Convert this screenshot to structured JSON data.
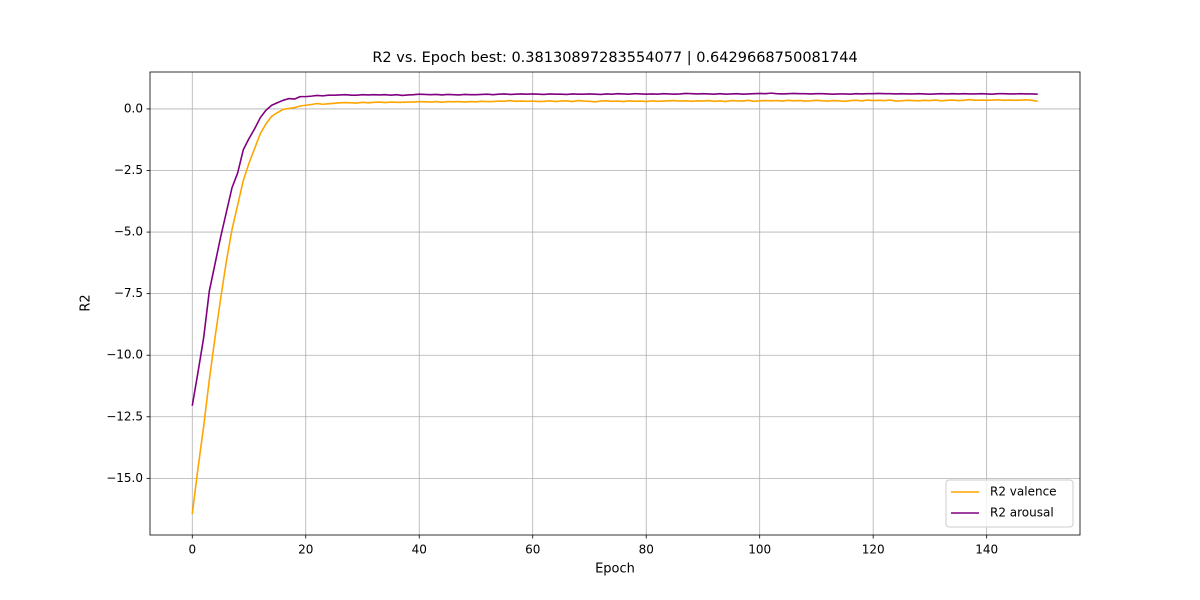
{
  "chart_data": {
    "type": "line",
    "title": "R2 vs. Epoch best: 0.38130897283554077 | 0.6429668750081744",
    "xlabel": "Epoch",
    "ylabel": "R2",
    "x": [
      0,
      1,
      2,
      3,
      4,
      5,
      6,
      7,
      8,
      9,
      10,
      11,
      12,
      13,
      14,
      15,
      16,
      17,
      18,
      19,
      20,
      21,
      22,
      23,
      24,
      25,
      26,
      27,
      28,
      29,
      30,
      31,
      32,
      33,
      34,
      35,
      36,
      37,
      38,
      39,
      40,
      41,
      42,
      43,
      44,
      45,
      46,
      47,
      48,
      49,
      50,
      51,
      52,
      53,
      54,
      55,
      56,
      57,
      58,
      59,
      60,
      61,
      62,
      63,
      64,
      65,
      66,
      67,
      68,
      69,
      70,
      71,
      72,
      73,
      74,
      75,
      76,
      77,
      78,
      79,
      80,
      81,
      82,
      83,
      84,
      85,
      86,
      87,
      88,
      89,
      90,
      91,
      92,
      93,
      94,
      95,
      96,
      97,
      98,
      99,
      100,
      101,
      102,
      103,
      104,
      105,
      106,
      107,
      108,
      109,
      110,
      111,
      112,
      113,
      114,
      115,
      116,
      117,
      118,
      119,
      120,
      121,
      122,
      123,
      124,
      125,
      126,
      127,
      128,
      129,
      130,
      131,
      132,
      133,
      134,
      135,
      136,
      137,
      138,
      139,
      140,
      141,
      142,
      143,
      144,
      145,
      146,
      147,
      148,
      149
    ],
    "series": [
      {
        "name": "R2 valence",
        "color": "#ffa500",
        "values": [
          -16.45,
          -14.6,
          -12.9,
          -11.0,
          -9.3,
          -7.7,
          -6.2,
          -4.9,
          -3.9,
          -2.9,
          -2.2,
          -1.6,
          -1.0,
          -0.6,
          -0.3,
          -0.15,
          -0.02,
          0.02,
          0.05,
          0.12,
          0.15,
          0.18,
          0.22,
          0.19,
          0.21,
          0.23,
          0.25,
          0.26,
          0.25,
          0.24,
          0.27,
          0.25,
          0.27,
          0.28,
          0.26,
          0.28,
          0.27,
          0.27,
          0.28,
          0.28,
          0.3,
          0.29,
          0.28,
          0.3,
          0.27,
          0.3,
          0.29,
          0.3,
          0.28,
          0.3,
          0.29,
          0.31,
          0.3,
          0.3,
          0.32,
          0.31,
          0.34,
          0.31,
          0.32,
          0.31,
          0.32,
          0.3,
          0.31,
          0.33,
          0.3,
          0.32,
          0.33,
          0.3,
          0.34,
          0.32,
          0.31,
          0.29,
          0.32,
          0.33,
          0.31,
          0.32,
          0.3,
          0.33,
          0.31,
          0.32,
          0.3,
          0.33,
          0.31,
          0.32,
          0.33,
          0.34,
          0.32,
          0.33,
          0.31,
          0.33,
          0.32,
          0.34,
          0.31,
          0.33,
          0.3,
          0.34,
          0.33,
          0.32,
          0.35,
          0.31,
          0.33,
          0.34,
          0.33,
          0.34,
          0.32,
          0.35,
          0.33,
          0.34,
          0.32,
          0.33,
          0.35,
          0.33,
          0.32,
          0.34,
          0.33,
          0.31,
          0.34,
          0.35,
          0.33,
          0.36,
          0.34,
          0.35,
          0.34,
          0.36,
          0.32,
          0.33,
          0.35,
          0.34,
          0.33,
          0.35,
          0.34,
          0.36,
          0.33,
          0.35,
          0.36,
          0.34,
          0.35,
          0.38,
          0.35,
          0.36,
          0.35,
          0.36,
          0.37,
          0.35,
          0.36,
          0.35,
          0.36,
          0.37,
          0.35,
          0.31
        ]
      },
      {
        "name": "R2 arousal",
        "color": "#800080",
        "values": [
          -12.05,
          -10.7,
          -9.3,
          -7.4,
          -6.3,
          -5.2,
          -4.2,
          -3.2,
          -2.6,
          -1.65,
          -1.2,
          -0.8,
          -0.35,
          -0.05,
          0.15,
          0.25,
          0.35,
          0.42,
          0.4,
          0.5,
          0.5,
          0.52,
          0.55,
          0.53,
          0.56,
          0.56,
          0.57,
          0.58,
          0.56,
          0.56,
          0.58,
          0.57,
          0.58,
          0.57,
          0.58,
          0.56,
          0.58,
          0.55,
          0.57,
          0.58,
          0.6,
          0.59,
          0.58,
          0.59,
          0.57,
          0.59,
          0.58,
          0.57,
          0.59,
          0.58,
          0.58,
          0.59,
          0.6,
          0.58,
          0.6,
          0.61,
          0.59,
          0.6,
          0.61,
          0.6,
          0.61,
          0.6,
          0.59,
          0.61,
          0.6,
          0.6,
          0.59,
          0.61,
          0.6,
          0.6,
          0.61,
          0.6,
          0.59,
          0.61,
          0.6,
          0.62,
          0.61,
          0.6,
          0.62,
          0.61,
          0.6,
          0.61,
          0.6,
          0.62,
          0.61,
          0.6,
          0.61,
          0.63,
          0.62,
          0.61,
          0.62,
          0.61,
          0.6,
          0.62,
          0.6,
          0.61,
          0.62,
          0.6,
          0.61,
          0.62,
          0.63,
          0.62,
          0.643,
          0.62,
          0.61,
          0.62,
          0.63,
          0.62,
          0.62,
          0.61,
          0.62,
          0.62,
          0.61,
          0.6,
          0.61,
          0.61,
          0.6,
          0.62,
          0.61,
          0.62,
          0.62,
          0.63,
          0.62,
          0.62,
          0.61,
          0.62,
          0.61,
          0.61,
          0.62,
          0.61,
          0.6,
          0.61,
          0.62,
          0.61,
          0.62,
          0.61,
          0.62,
          0.61,
          0.61,
          0.62,
          0.61,
          0.6,
          0.62,
          0.62,
          0.61,
          0.61,
          0.62,
          0.61,
          0.61,
          0.6
        ]
      }
    ],
    "xlim": [
      -7.45,
      156.45
    ],
    "xticks": [
      0,
      20,
      40,
      60,
      80,
      100,
      120,
      140
    ],
    "ylim": [
      -17.3,
      1.5
    ],
    "yticks": [
      {
        "value": -15,
        "label": "−15.0"
      },
      {
        "value": -12.5,
        "label": "−12.5"
      },
      {
        "value": -10,
        "label": "−10.0"
      },
      {
        "value": -7.5,
        "label": "−7.5"
      },
      {
        "value": -5,
        "label": "−5.0"
      },
      {
        "value": -2.5,
        "label": "−2.5"
      },
      {
        "value": 0,
        "label": "0.0"
      }
    ],
    "grid": true,
    "legend": "lower right"
  }
}
